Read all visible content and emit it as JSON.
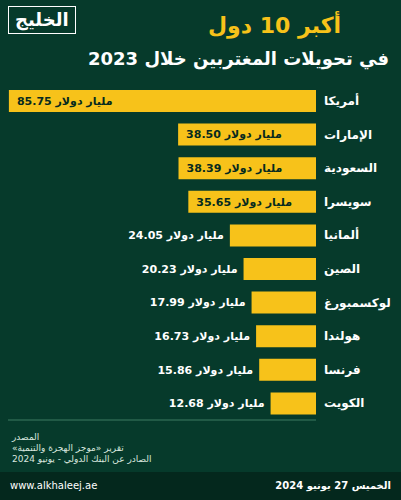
{
  "chart_data": {
    "type": "bar",
    "orientation": "horizontal",
    "logo": "الخليج",
    "title": "أكبر 10 دول",
    "subtitle": "في تحويلات المغتربين خلال 2023",
    "categories": [
      "أمريكا",
      "الإمارات",
      "السعودية",
      "سويسرا",
      "ألمانيا",
      "الصين",
      "لوكسمبورغ",
      "هولندا",
      "فرنسا",
      "الكويت"
    ],
    "values": [
      85.75,
      38.5,
      38.39,
      35.65,
      24.05,
      20.23,
      17.99,
      16.73,
      15.86,
      12.68
    ],
    "value_labels": [
      "85.75 مليار دولار",
      "38.50 مليار دولار",
      "38.39 مليار دولار",
      "35.65 مليار دولار",
      "24.05 مليار دولار",
      "20.23 مليار دولار",
      "17.99 مليار دولار",
      "16.73 مليار دولار",
      "15.86 مليار دولار",
      "12.68 مليار دولار"
    ],
    "data_labels": true,
    "color": "#f7c21a",
    "xlim": [
      0,
      86
    ],
    "tick_labels": "y",
    "grid": false,
    "source": [
      "المصدر",
      "تقرير «موجز الهجرة والتنمية»",
      "الصادر عن البنك الدولي - يونيو 2024"
    ],
    "date": "الخميس 27 يونيو 2024",
    "website": "www.alkhaleej.ae"
  }
}
